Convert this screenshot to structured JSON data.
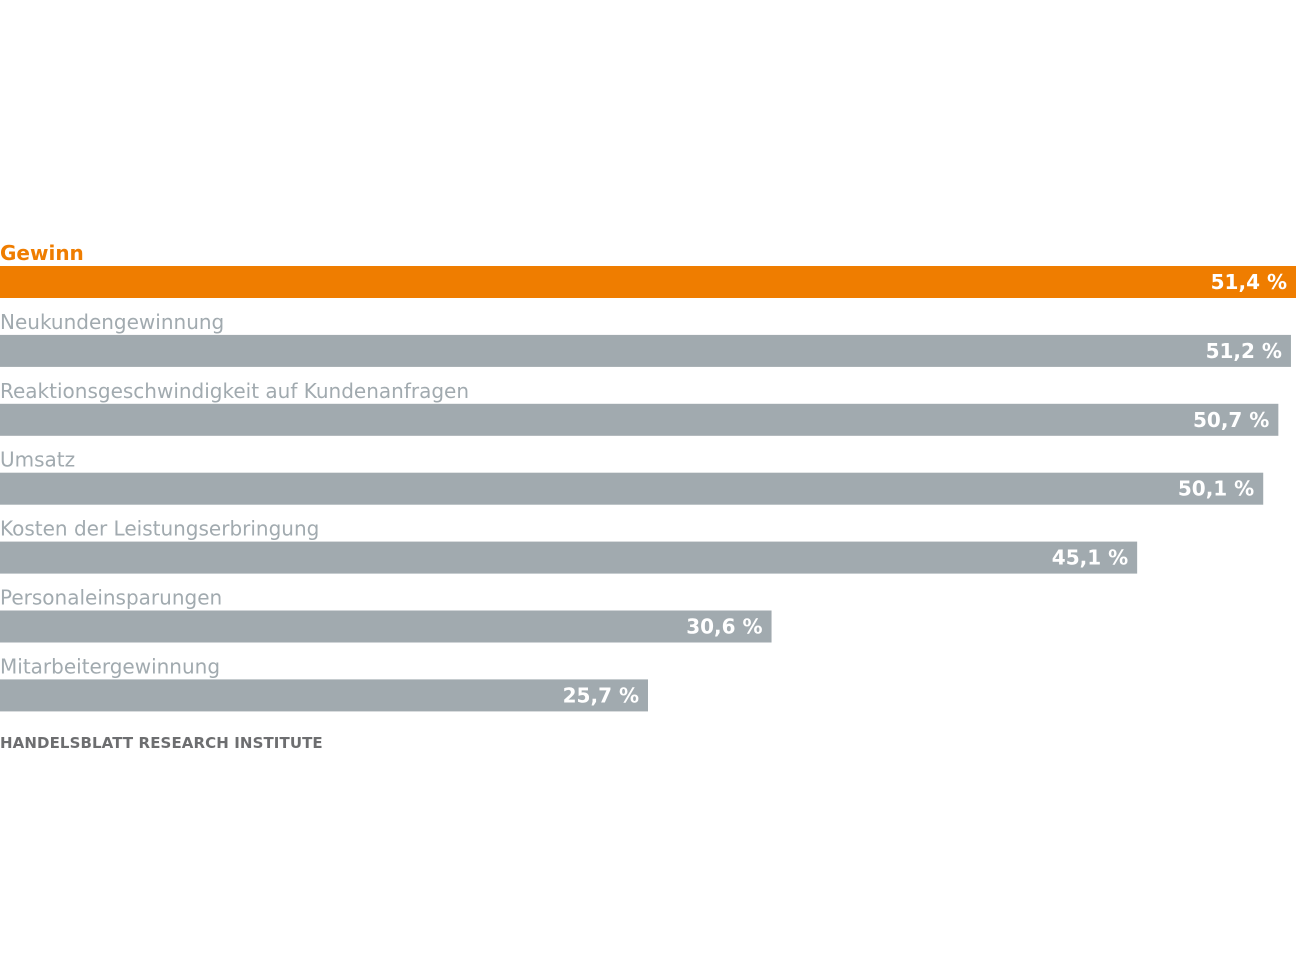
{
  "chart_data": {
    "type": "bar",
    "orientation": "horizontal",
    "categories": [
      "Gewinn",
      "Neukundengewinnung",
      "Reaktionsgeschwindigkeit auf Kundenanfragen",
      "Umsatz",
      "Kosten der Leistungserbringung",
      "Personaleinsparungen",
      "Mitarbeitergewinnung"
    ],
    "values": [
      51.4,
      51.2,
      50.7,
      50.1,
      45.1,
      30.6,
      25.7
    ],
    "value_labels": [
      "51,4 %",
      "51,2 %",
      "50,7 %",
      "50,1 %",
      "45,1 %",
      "30,6 %",
      "25,7 %"
    ],
    "highlight_index": 0,
    "unit": "%",
    "grid": false,
    "legend": "none",
    "title": "",
    "xlabel": "",
    "ylabel": ""
  },
  "source": "HANDELSBLATT RESEARCH INSTITUTE",
  "colors": {
    "highlight": "#ef7d00",
    "bar": "#a1aaaf",
    "label": "#a1aaaf",
    "value_text": "#ffffff",
    "source_text": "#6d6e70"
  }
}
